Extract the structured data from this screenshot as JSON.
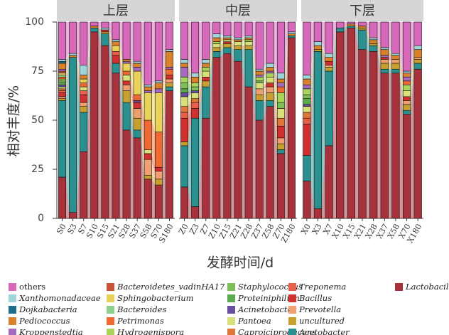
{
  "chart_data": {
    "type": "bar",
    "stacked": true,
    "ylabel": "相对丰度/%",
    "xlabel": "发酵时间/d",
    "ylim": [
      0,
      100
    ],
    "yticks": [
      0,
      25,
      50,
      75,
      100
    ],
    "grid": false,
    "panels": [
      {
        "title": "上层",
        "categories": [
          "S0",
          "S3",
          "S7",
          "S10",
          "S15",
          "S21",
          "S28",
          "S37",
          "S58",
          "S70",
          "S180"
        ]
      },
      {
        "title": "中层",
        "categories": [
          "Z0",
          "Z3",
          "Z7",
          "Z10",
          "Z15",
          "Z21",
          "Z28",
          "Z37",
          "Z58",
          "Z70",
          "Z180"
        ]
      },
      {
        "title": "下层",
        "categories": [
          "X0",
          "X3",
          "X7",
          "X10",
          "X15",
          "X21",
          "X28",
          "X37",
          "X58",
          "X70",
          "X180"
        ]
      }
    ],
    "series": [
      {
        "name": "others",
        "color": "#d868b9",
        "values": [
          [
            19,
            16,
            22,
            2,
            3,
            9,
            19,
            20,
            32,
            30,
            14
          ],
          [
            19,
            26,
            19,
            6,
            7,
            8,
            7,
            24,
            21,
            26,
            5
          ],
          [
            27,
            10,
            16,
            3,
            1,
            2,
            8,
            13,
            16,
            25,
            12
          ]
        ]
      },
      {
        "name": "Xanthomonadaceae",
        "color": "#9fd4d9",
        "values": [
          [
            1,
            1,
            5,
            0,
            1,
            1,
            0,
            1,
            1,
            1,
            1
          ],
          [
            2,
            2,
            2,
            2,
            1,
            1,
            1,
            1,
            2,
            3,
            1
          ],
          [
            2,
            2,
            2,
            0,
            0,
            0,
            1,
            1,
            1,
            1,
            2
          ]
        ]
      },
      {
        "name": "Dojkabacteria",
        "color": "#1f6d8a",
        "values": [
          [
            1,
            0,
            0,
            0,
            0,
            0,
            0,
            0,
            0,
            0,
            0
          ],
          [
            0,
            0,
            0,
            0,
            0,
            0,
            0,
            0,
            0,
            0,
            0
          ],
          [
            0,
            0,
            0,
            0,
            0,
            0,
            0,
            0,
            0,
            0,
            0
          ]
        ]
      },
      {
        "name": "Pediococcus",
        "color": "#d9822b",
        "values": [
          [
            3,
            1,
            2,
            1,
            0,
            2,
            1,
            2,
            2,
            3,
            8
          ],
          [
            2,
            3,
            2,
            2,
            1,
            1,
            1,
            2,
            2,
            2,
            1
          ],
          [
            3,
            2,
            2,
            0,
            1,
            1,
            2,
            3,
            2,
            2,
            4
          ]
        ]
      },
      {
        "name": "Kroppenstedtia",
        "color": "#a56bbf",
        "values": [
          [
            1,
            0,
            0,
            0,
            0,
            0,
            1,
            2,
            1,
            2,
            1
          ],
          [
            5,
            0,
            0,
            0,
            0,
            0,
            0,
            1,
            1,
            2,
            0
          ],
          [
            2,
            0,
            0,
            0,
            0,
            0,
            0,
            1,
            0,
            2,
            0
          ]
        ]
      },
      {
        "name": "Bacteroidetes_vadinHA17",
        "color": "#c8543a",
        "values": [
          [
            1,
            0,
            0,
            0,
            0,
            0,
            0,
            0,
            0,
            0,
            0
          ],
          [
            0,
            0,
            0,
            0,
            0,
            0,
            0,
            0,
            0,
            0,
            0
          ],
          [
            0,
            0,
            0,
            0,
            0,
            0,
            0,
            0,
            0,
            0,
            0
          ]
        ]
      },
      {
        "name": "Sphingobacterium",
        "color": "#e8d25a",
        "values": [
          [
            1,
            0,
            2,
            0,
            0,
            3,
            4,
            12,
            14,
            20,
            0
          ],
          [
            0,
            0,
            0,
            0,
            0,
            0,
            0,
            0,
            0,
            0,
            0
          ],
          [
            0,
            0,
            0,
            0,
            0,
            0,
            0,
            0,
            0,
            0,
            0
          ]
        ]
      },
      {
        "name": "Bacteroides",
        "color": "#8fcf8f",
        "values": [
          [
            1,
            0,
            0,
            0,
            0,
            0,
            0,
            0,
            0,
            0,
            0
          ],
          [
            0,
            0,
            0,
            0,
            0,
            0,
            0,
            0,
            0,
            0,
            0
          ],
          [
            0,
            0,
            0,
            0,
            0,
            0,
            0,
            0,
            0,
            0,
            0
          ]
        ]
      },
      {
        "name": "Petrimonas",
        "color": "#ef6a32",
        "values": [
          [
            1,
            0,
            2,
            0,
            0,
            0,
            2,
            3,
            15,
            18,
            3
          ],
          [
            0,
            0,
            0,
            0,
            0,
            0,
            0,
            0,
            0,
            3,
            0
          ],
          [
            0,
            0,
            0,
            0,
            0,
            0,
            0,
            0,
            0,
            2,
            0
          ]
        ]
      },
      {
        "name": "Hydrogenispora",
        "color": "#a9d65a",
        "values": [
          [
            1,
            0,
            0,
            0,
            0,
            0,
            0,
            0,
            0,
            0,
            0
          ],
          [
            3,
            2,
            2,
            1,
            0,
            0,
            1,
            2,
            2,
            5,
            0
          ],
          [
            3,
            0,
            0,
            0,
            0,
            0,
            0,
            0,
            0,
            3,
            0
          ]
        ]
      },
      {
        "name": "Staphylococcus",
        "color": "#7fbf5a",
        "values": [
          [
            1,
            0,
            0,
            0,
            0,
            0,
            0,
            0,
            0,
            0,
            0
          ],
          [
            3,
            2,
            0,
            0,
            0,
            0,
            0,
            1,
            0,
            3,
            0
          ],
          [
            2,
            0,
            0,
            0,
            0,
            0,
            0,
            0,
            0,
            0,
            0
          ]
        ]
      },
      {
        "name": "Proteiniphilum",
        "color": "#5aaa50",
        "values": [
          [
            1,
            0,
            0,
            0,
            0,
            0,
            0,
            0,
            0,
            0,
            0
          ],
          [
            2,
            0,
            0,
            0,
            0,
            0,
            0,
            0,
            0,
            0,
            0
          ],
          [
            3,
            0,
            0,
            0,
            0,
            0,
            0,
            0,
            0,
            0,
            0
          ]
        ]
      },
      {
        "name": "Acinetobacter",
        "color": "#6a4fa0",
        "values": [
          [
            1,
            0,
            0,
            0,
            0,
            0,
            0,
            1,
            0,
            0,
            0
          ],
          [
            2,
            1,
            0,
            0,
            0,
            0,
            0,
            0,
            0,
            0,
            0
          ],
          [
            1,
            0,
            0,
            0,
            0,
            0,
            0,
            0,
            0,
            0,
            0
          ]
        ]
      },
      {
        "name": "Pantoea",
        "color": "#d8e07a",
        "values": [
          [
            1,
            0,
            2,
            0,
            0,
            0,
            3,
            0,
            2,
            0,
            0
          ],
          [
            5,
            3,
            3,
            2,
            1,
            2,
            2,
            3,
            3,
            5,
            0
          ],
          [
            3,
            0,
            0,
            0,
            0,
            0,
            0,
            0,
            0,
            3,
            0
          ]
        ]
      },
      {
        "name": "Caproiciproducens",
        "color": "#e0773a",
        "values": [
          [
            1,
            0,
            0,
            0,
            0,
            0,
            0,
            0,
            0,
            0,
            0
          ],
          [
            3,
            2,
            0,
            0,
            0,
            0,
            0,
            0,
            0,
            4,
            0
          ],
          [
            3,
            0,
            0,
            0,
            0,
            0,
            0,
            0,
            0,
            0,
            0
          ]
        ]
      },
      {
        "name": "Treponema",
        "color": "#e8604a",
        "values": [
          [
            1,
            0,
            2,
            0,
            0,
            2,
            0,
            0,
            0,
            0,
            0
          ],
          [
            3,
            3,
            0,
            0,
            0,
            0,
            0,
            0,
            0,
            0,
            0
          ],
          [
            3,
            0,
            0,
            0,
            0,
            0,
            0,
            0,
            0,
            0,
            0
          ]
        ]
      },
      {
        "name": "Bacillus",
        "color": "#d03030",
        "values": [
          [
            2,
            0,
            4,
            0,
            1,
            4,
            2,
            3,
            3,
            2,
            2
          ],
          [
            12,
            5,
            2,
            0,
            1,
            0,
            0,
            0,
            2,
            6,
            0
          ],
          [
            16,
            0,
            2,
            0,
            0,
            0,
            0,
            1,
            0,
            2,
            0
          ]
        ]
      },
      {
        "name": "Prevotella",
        "color": "#f0a070",
        "values": [
          [
            1,
            0,
            2,
            0,
            0,
            0,
            3,
            5,
            8,
            4,
            2
          ],
          [
            0,
            0,
            0,
            0,
            0,
            0,
            0,
            3,
            3,
            3,
            0
          ],
          [
            0,
            0,
            1,
            0,
            0,
            0,
            0,
            2,
            2,
            2,
            1
          ]
        ]
      },
      {
        "name": "uncultured",
        "color": "#c8a030",
        "values": [
          [
            1,
            0,
            3,
            0,
            1,
            0,
            6,
            6,
            2,
            3,
            2
          ],
          [
            2,
            0,
            3,
            2,
            2,
            2,
            2,
            3,
            4,
            3,
            0
          ],
          [
            0,
            1,
            2,
            0,
            0,
            1,
            1,
            3,
            3,
            3,
            2
          ]
        ]
      },
      {
        "name": "Acetobacter",
        "color": "#2a9090",
        "values": [
          [
            39,
            79,
            20,
            2,
            6,
            5,
            14,
            4,
            0,
            0,
            2
          ],
          [
            21,
            45,
            16,
            3,
            3,
            6,
            19,
            10,
            3,
            2,
            1
          ],
          [
            13,
            80,
            38,
            2,
            1,
            10,
            3,
            2,
            2,
            2,
            3
          ]
        ]
      },
      {
        "name": "Lactobacillus",
        "color": "#a8323c",
        "values": [
          [
            21,
            3,
            34,
            95,
            88,
            74,
            45,
            41,
            20,
            17,
            65
          ],
          [
            16,
            6,
            51,
            82,
            84,
            80,
            67,
            50,
            57,
            33,
            92
          ],
          [
            19,
            5,
            37,
            95,
            97,
            86,
            85,
            74,
            74,
            53,
            76
          ]
        ]
      }
    ]
  }
}
